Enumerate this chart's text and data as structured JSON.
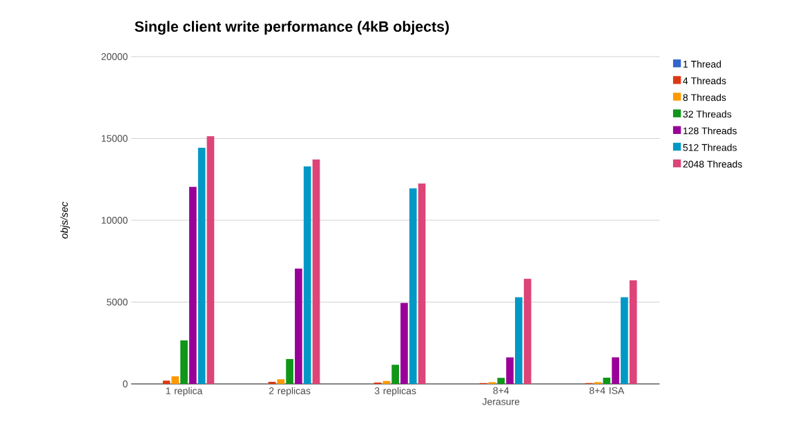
{
  "chart_data": {
    "type": "bar",
    "title": "Single client write performance (4kB objects)",
    "ylabel": "*objs/sec*",
    "categories": [
      "1 replica",
      "2 replicas",
      "3 replicas",
      "8+4 Jerasure",
      "8+4 ISA"
    ],
    "series": [
      {
        "name": "1 Thread",
        "color": "#3366cc",
        "values": [
          0,
          0,
          0,
          0,
          0
        ]
      },
      {
        "name": "4 Threads",
        "color": "#dc3912",
        "values": [
          200,
          130,
          80,
          50,
          50
        ]
      },
      {
        "name": "8 Threads",
        "color": "#ff9900",
        "values": [
          460,
          280,
          180,
          100,
          100
        ]
      },
      {
        "name": "32 Threads",
        "color": "#109618",
        "values": [
          2660,
          1520,
          1170,
          370,
          380
        ]
      },
      {
        "name": "128 Threads",
        "color": "#990099",
        "values": [
          12050,
          7050,
          4950,
          1620,
          1620
        ]
      },
      {
        "name": "512 Threads",
        "color": "#0099c6",
        "values": [
          14430,
          13290,
          11950,
          5290,
          5290
        ]
      },
      {
        "name": "2048 Threads",
        "color": "#dd4477",
        "values": [
          15140,
          13710,
          12250,
          6420,
          6330
        ]
      }
    ],
    "ylim": [
      0,
      20000
    ],
    "yticks": [
      0,
      5000,
      10000,
      15000,
      20000
    ],
    "grid": "y",
    "legend": "right"
  }
}
